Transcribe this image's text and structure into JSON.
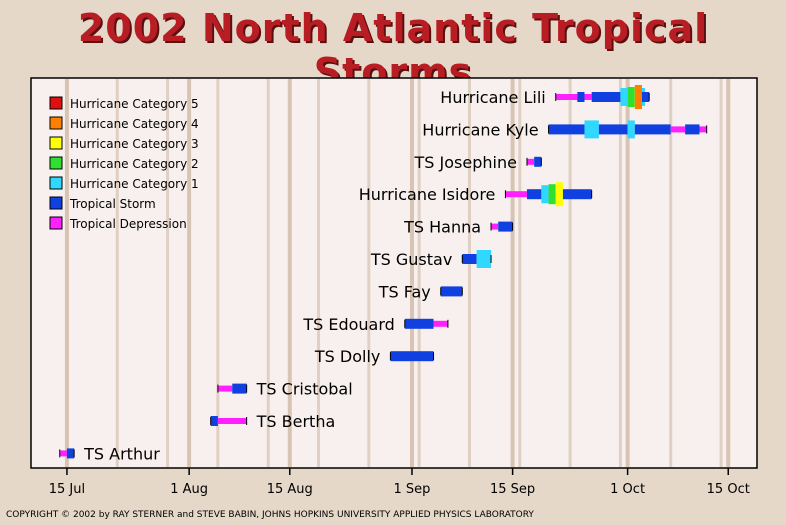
{
  "page": {
    "title": "2002 North Atlantic Tropical Storms",
    "copyright": "COPYRIGHT © 2002 by RAY STERNER and STEVE BABIN, JOHNS HOPKINS UNIVERSITY APPLIED PHYSICS LABORATORY"
  },
  "colors": {
    "cat5": "#e01010",
    "cat4": "#ff8000",
    "cat3": "#ffff00",
    "cat2": "#30e030",
    "cat1": "#30d8ff",
    "ts": "#1040e0",
    "td": "#ff20ff"
  },
  "chart_data": {
    "type": "timeline",
    "title": "2002 North Atlantic Tropical Storms",
    "x_ticks": [
      "15 Jul",
      "1 Aug",
      "15 Aug",
      "1 Sep",
      "15 Sep",
      "1 Oct",
      "15 Oct"
    ],
    "x_range": [
      "2002-07-10",
      "2002-10-19"
    ],
    "legend": [
      {
        "label": "Hurricane Category 5",
        "key": "cat5"
      },
      {
        "label": "Hurricane Category 4",
        "key": "cat4"
      },
      {
        "label": "Hurricane Category 3",
        "key": "cat3"
      },
      {
        "label": "Hurricane Category 2",
        "key": "cat2"
      },
      {
        "label": "Hurricane Category 1",
        "key": "cat1"
      },
      {
        "label": "Tropical Storm",
        "key": "ts"
      },
      {
        "label": "Tropical Depression",
        "key": "td"
      }
    ],
    "legend_position": "top-left",
    "series": [
      {
        "name": "Hurricane Lili",
        "segments": [
          [
            "2002-09-21",
            "td"
          ],
          [
            "2002-09-24",
            "ts"
          ],
          [
            "2002-09-25",
            "td"
          ],
          [
            "2002-09-26",
            "ts"
          ],
          [
            "2002-09-30",
            "cat1"
          ],
          [
            "2002-10-01",
            "cat2"
          ],
          [
            "2002-10-02",
            "cat3"
          ],
          [
            "2002-10-02",
            "cat4"
          ],
          [
            "2002-10-03",
            "cat1"
          ],
          [
            "2002-10-03",
            "ts"
          ],
          [
            "2002-10-04",
            null
          ]
        ]
      },
      {
        "name": "Hurricane Kyle",
        "segments": [
          [
            "2002-09-20",
            "ts"
          ],
          [
            "2002-09-25",
            "cat1"
          ],
          [
            "2002-09-27",
            "ts"
          ],
          [
            "2002-10-01",
            "cat1"
          ],
          [
            "2002-10-02",
            "ts"
          ],
          [
            "2002-10-07",
            "td"
          ],
          [
            "2002-10-09",
            "ts"
          ],
          [
            "2002-10-11",
            "td"
          ],
          [
            "2002-10-12",
            null
          ]
        ]
      },
      {
        "name": "TS Josephine",
        "segments": [
          [
            "2002-09-17",
            "td"
          ],
          [
            "2002-09-18",
            "ts"
          ],
          [
            "2002-09-19",
            null
          ]
        ]
      },
      {
        "name": "Hurricane Isidore",
        "segments": [
          [
            "2002-09-14",
            "td"
          ],
          [
            "2002-09-17",
            "ts"
          ],
          [
            "2002-09-19",
            "cat1"
          ],
          [
            "2002-09-20",
            "cat2"
          ],
          [
            "2002-09-21",
            "cat3"
          ],
          [
            "2002-09-22",
            "ts"
          ],
          [
            "2002-09-26",
            null
          ]
        ]
      },
      {
        "name": "TS Hanna",
        "segments": [
          [
            "2002-09-12",
            "td"
          ],
          [
            "2002-09-13",
            "ts"
          ],
          [
            "2002-09-15",
            null
          ]
        ]
      },
      {
        "name": "TS Gustav",
        "segments": [
          [
            "2002-09-08",
            "ts"
          ],
          [
            "2002-09-10",
            "cat1"
          ],
          [
            "2002-09-12",
            null
          ]
        ]
      },
      {
        "name": "TS Fay",
        "segments": [
          [
            "2002-09-05",
            "ts"
          ],
          [
            "2002-09-08",
            null
          ]
        ]
      },
      {
        "name": "TS Edouard",
        "segments": [
          [
            "2002-08-31",
            "ts"
          ],
          [
            "2002-09-04",
            "td"
          ],
          [
            "2002-09-06",
            null
          ]
        ]
      },
      {
        "name": "TS Dolly",
        "segments": [
          [
            "2002-08-29",
            "ts"
          ],
          [
            "2002-09-04",
            null
          ]
        ]
      },
      {
        "name": "TS Cristobal",
        "segments": [
          [
            "2002-08-05",
            "td"
          ],
          [
            "2002-08-07",
            "ts"
          ],
          [
            "2002-08-09",
            null
          ]
        ]
      },
      {
        "name": "TS Bertha",
        "segments": [
          [
            "2002-08-04",
            "ts"
          ],
          [
            "2002-08-05",
            "td"
          ],
          [
            "2002-08-09",
            null
          ]
        ]
      },
      {
        "name": "TS Arthur",
        "segments": [
          [
            "2002-07-14",
            "td"
          ],
          [
            "2002-07-15",
            "ts"
          ],
          [
            "2002-07-16",
            null
          ]
        ]
      }
    ]
  }
}
